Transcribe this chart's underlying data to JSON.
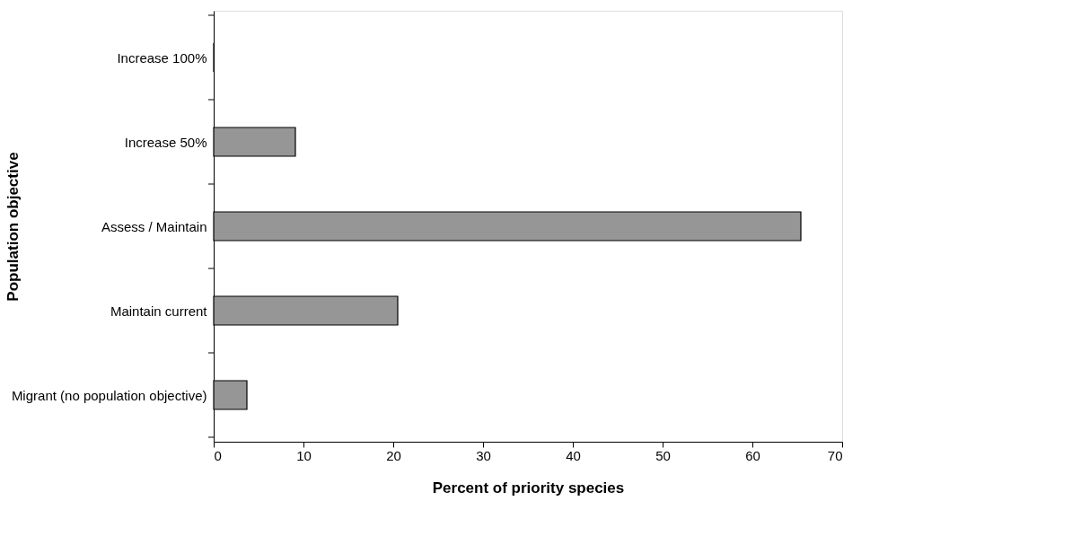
{
  "chart_data": {
    "type": "bar",
    "orientation": "horizontal",
    "xlabel": "Percent of priority species",
    "ylabel": "Population objective",
    "categories": [
      "Increase 100%",
      "Increase 50%",
      "Assess / Maintain",
      "Maintain current",
      "Migrant (no population objective)"
    ],
    "values": [
      0,
      9.1,
      65.4,
      20.5,
      3.7
    ],
    "color": "#969696",
    "xlim": [
      0,
      70
    ],
    "xticks": [
      0,
      10,
      20,
      30,
      40,
      50,
      60,
      70
    ],
    "grid": false
  }
}
